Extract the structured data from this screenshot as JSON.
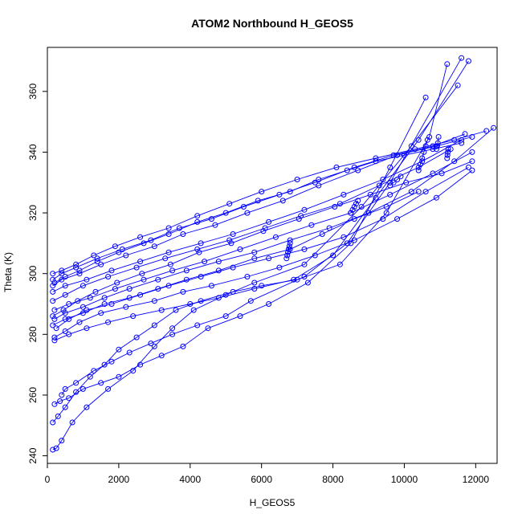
{
  "chart_data": {
    "type": "scatter",
    "title": "ATOM2 Northbound H_GEOS5",
    "xlabel": "H_GEOS5",
    "ylabel": "Theta (K)",
    "xlim": [
      0,
      12600
    ],
    "ylim": [
      237.5,
      374.5
    ],
    "xticks": [
      0,
      2000,
      4000,
      6000,
      8000,
      10000,
      12000
    ],
    "yticks": [
      240,
      260,
      280,
      300,
      320,
      340,
      360
    ],
    "xtick_labels": [
      "0",
      "2000",
      "4000",
      "6000",
      "8000",
      "10000",
      "12000"
    ],
    "ytick_labels": [
      "240",
      "260",
      "280",
      "300",
      "320",
      "340",
      "360"
    ],
    "color": "#0000ff",
    "marker": "open-circle",
    "connected": true,
    "series": [
      {
        "x": [
          150,
          250,
          400,
          700,
          1100,
          1700,
          2400,
          3000,
          3500,
          4100,
          5000,
          5800,
          7200,
          8800,
          10200,
          11500
        ],
        "y": [
          242,
          242.5,
          245,
          251,
          256,
          262,
          268,
          276,
          282,
          288,
          293,
          297,
          303,
          322,
          342,
          362
        ]
      },
      {
        "x": [
          150,
          300,
          500,
          800,
          1200,
          1600,
          2000,
          2500,
          3000,
          3600,
          4300,
          5200,
          6000,
          7000,
          8200,
          9500,
          10700,
          11200
        ],
        "y": [
          251,
          253,
          256,
          261,
          266,
          270,
          275,
          279,
          283,
          288,
          291,
          294,
          296,
          298,
          303,
          320,
          345,
          369
        ]
      },
      {
        "x": [
          200,
          350,
          600,
          1000,
          1500,
          2000,
          2600,
          3200,
          3800,
          4500,
          5400,
          6200,
          7300,
          8500,
          9600,
          10600
        ],
        "y": [
          257,
          258,
          259,
          262,
          264,
          266,
          270,
          273,
          276,
          282,
          286,
          290,
          297,
          310,
          335,
          358
        ]
      },
      {
        "x": [
          400,
          500,
          800,
          1300,
          1800,
          2300,
          2900,
          3500,
          4200,
          5000,
          5700,
          7200,
          8400,
          9600,
          11600
        ],
        "y": [
          260,
          262,
          264,
          268,
          271,
          274,
          277,
          280,
          283,
          286,
          291,
          299,
          310,
          330,
          371
        ]
      },
      {
        "x": [
          200,
          600,
          1100,
          1700,
          2400,
          3200,
          4000,
          4800,
          5800,
          6900,
          8000,
          9200,
          10400,
          11800
        ],
        "y": [
          278,
          280,
          282,
          284,
          286,
          288,
          290,
          292,
          295,
          298,
          306,
          325,
          344,
          370
        ]
      },
      {
        "x": [
          200,
          500,
          900,
          1500,
          2200,
          3000,
          3800,
          4600,
          5600,
          6500,
          7500,
          8600,
          9800,
          10900,
          11900
        ],
        "y": [
          279,
          281,
          284,
          287,
          289,
          291,
          294,
          296,
          299,
          302,
          306,
          311,
          318,
          325,
          334
        ]
      },
      {
        "x": [
          250,
          600,
          1100,
          1800,
          2600,
          3400,
          4300,
          5200,
          6200,
          7200,
          8300,
          9400,
          10600,
          11800
        ],
        "y": [
          282,
          285,
          288,
          290,
          293,
          296,
          299,
          302,
          305,
          308,
          312,
          318,
          327,
          335
        ]
      },
      {
        "x": [
          200,
          500,
          1000,
          1600,
          2300,
          3100,
          3900,
          4800,
          5800,
          6800,
          7900,
          9000,
          10200,
          11400,
          12500
        ],
        "y": [
          285,
          287,
          289,
          292,
          295,
          298,
          301,
          304,
          307,
          311,
          315,
          320,
          327,
          337,
          348
        ]
      },
      {
        "x": [
          200,
          600,
          1200,
          1900,
          2700,
          3500,
          4400,
          5400,
          6400,
          7400,
          8500,
          9600,
          10800,
          11900
        ],
        "y": [
          288,
          290,
          292,
          295,
          298,
          301,
          304,
          308,
          312,
          316,
          320,
          326,
          333,
          340
        ]
      },
      {
        "x": [
          150,
          500,
          1000,
          1700,
          2500,
          3300,
          4200,
          5100,
          6100,
          7100,
          8200,
          9300,
          10400,
          11300
        ],
        "y": [
          291,
          293,
          296,
          299,
          302,
          305,
          308,
          311,
          315,
          319,
          323,
          329,
          335,
          341
        ]
      },
      {
        "x": [
          150,
          500,
          1100,
          1800,
          2600,
          3400,
          4300,
          5200,
          6200,
          7200,
          8300,
          9400,
          10500,
          11600
        ],
        "y": [
          294,
          296,
          298,
          301,
          304,
          307,
          310,
          313,
          317,
          321,
          326,
          331,
          337,
          344
        ]
      },
      {
        "x": [
          150,
          400,
          900,
          1500,
          2200,
          3000,
          3800,
          4700,
          5600,
          6600,
          7600,
          8700,
          9800,
          10900,
          11900
        ],
        "y": [
          296,
          298,
          300,
          303,
          306,
          309,
          313,
          316,
          320,
          324,
          329,
          334,
          339,
          342,
          345
        ]
      },
      {
        "x": [
          150,
          400,
          800,
          1400,
          2100,
          2900,
          3700,
          4600,
          5500,
          6500,
          7500,
          8600,
          9700,
          10800,
          11700
        ],
        "y": [
          298,
          300,
          302,
          305,
          308,
          311,
          315,
          318,
          322,
          326,
          330,
          335,
          339,
          342,
          346
        ]
      },
      {
        "x": [
          150,
          400,
          800,
          1300,
          1900,
          2600,
          3400,
          4200,
          5100,
          6000,
          7000,
          8100,
          9200,
          10300,
          11400,
          12300
        ],
        "y": [
          300,
          301,
          303,
          306,
          309,
          312,
          315,
          319,
          323,
          327,
          331,
          335,
          338,
          341,
          344,
          347
        ]
      },
      {
        "x": [
          200,
          500,
          900,
          1400,
          2000,
          2700,
          3400,
          4200,
          5000,
          5900,
          6800,
          7600,
          8400,
          9200,
          10000,
          10800,
          11600
        ],
        "y": [
          297,
          299,
          301,
          304,
          307,
          310,
          313,
          317,
          320,
          324,
          327,
          331,
          334,
          337,
          339,
          341,
          343
        ]
      },
      {
        "x": [
          150,
          450,
          850,
          1350,
          1950,
          2650,
          3450,
          4250,
          5150,
          6050,
          7050,
          8050,
          9050,
          10050,
          11050,
          11900
        ],
        "y": [
          286,
          288,
          291,
          294,
          297,
          300,
          303,
          307,
          310,
          314,
          318,
          322,
          326,
          330,
          333,
          337
        ]
      },
      {
        "x": [
          150,
          500,
          1000,
          1600,
          2300,
          3100,
          3900,
          4800,
          5800,
          6800,
          7700,
          8600,
          9500,
          10400
        ],
        "y": [
          283,
          285,
          287,
          290,
          292,
          295,
          298,
          301,
          305,
          308,
          313,
          318,
          322,
          327
        ]
      },
      {
        "x": [
          6700,
          6720,
          6740,
          6760,
          6780,
          6800
        ],
        "y": [
          305,
          306,
          307,
          308,
          309,
          310
        ]
      },
      {
        "x": [
          8500,
          8550,
          8600,
          8650,
          8700
        ],
        "y": [
          320,
          321,
          322,
          323,
          324
        ]
      },
      {
        "x": [
          10400,
          10450,
          10500,
          10550,
          10600,
          10650
        ],
        "y": [
          334,
          336,
          338,
          340,
          342,
          344
        ]
      },
      {
        "x": [
          10900,
          10920,
          10940,
          10960
        ],
        "y": [
          341,
          342,
          343,
          345
        ]
      },
      {
        "x": [
          11200,
          11210,
          11220,
          11230
        ],
        "y": [
          338,
          339,
          340,
          341
        ]
      },
      {
        "x": [
          9600,
          9700,
          9800,
          9900
        ],
        "y": [
          329,
          330,
          331,
          332
        ]
      }
    ]
  }
}
